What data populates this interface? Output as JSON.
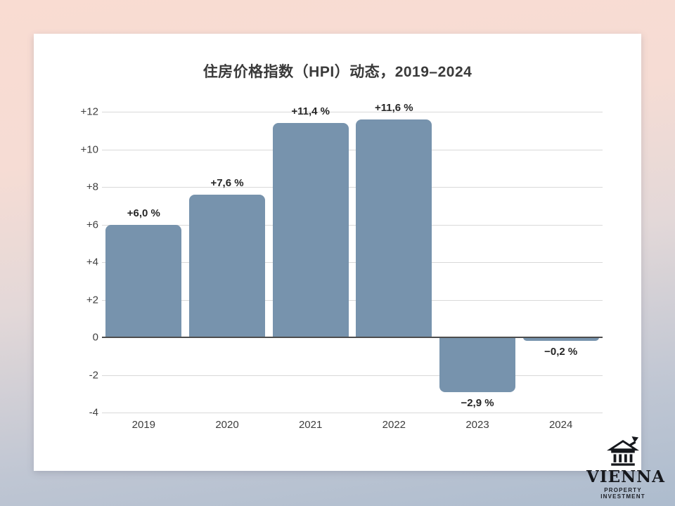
{
  "page": {
    "background_top_color": "#f9dcd2",
    "background_bottom_color": "#adbcce",
    "card_color": "#ffffff"
  },
  "chart_data": {
    "type": "bar",
    "title": "住房价格指数（HPI）动态，2019–2024",
    "xlabel": "",
    "ylabel": "",
    "categories": [
      "2019",
      "2020",
      "2021",
      "2022",
      "2023",
      "2024"
    ],
    "values": [
      6.0,
      7.6,
      11.4,
      11.6,
      -2.9,
      -0.2
    ],
    "value_labels": [
      "+6,0 %",
      "+7,6 %",
      "+11,4 %",
      "+11,6 %",
      "−2,9 %",
      "−0,2 %"
    ],
    "ylim": [
      -4,
      12
    ],
    "y_ticks": [
      {
        "value": 12,
        "label": "+12"
      },
      {
        "value": 10,
        "label": "+10"
      },
      {
        "value": 8,
        "label": "+8"
      },
      {
        "value": 6,
        "label": "+6"
      },
      {
        "value": 4,
        "label": "+4"
      },
      {
        "value": 2,
        "label": "+2"
      },
      {
        "value": 0,
        "label": "0"
      },
      {
        "value": -2,
        "label": "-2"
      },
      {
        "value": -4,
        "label": "-4"
      }
    ],
    "grid": true,
    "legend": false,
    "bar_color": "#7793ad",
    "grid_color": "#d9d9d9",
    "zero_line_color": "#4d4d4d",
    "title_color": "#3a3a3a",
    "label_color": "#262626"
  },
  "logo": {
    "icon": "bank-building-arrow-icon",
    "name": "VIENNA",
    "subtitle": "PROPERTY INVESTMENT",
    "color": "#16181d"
  }
}
